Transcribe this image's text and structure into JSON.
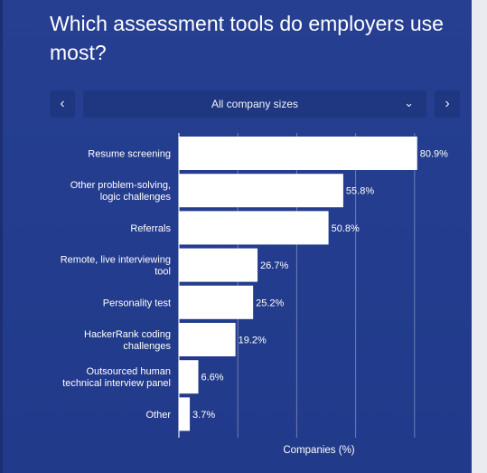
{
  "title": "Which assessment tools do employers use most?",
  "filter": {
    "selected": "All company sizes",
    "prev_icon": "chevron-left-icon",
    "next_icon": "chevron-right-icon",
    "dropdown_icon": "chevron-down-icon"
  },
  "chart_data": {
    "type": "bar",
    "orientation": "horizontal",
    "categories": [
      [
        "Resume screening"
      ],
      [
        "Other problem-solving,",
        "logic challenges"
      ],
      [
        "Referrals"
      ],
      [
        "Remote, live interviewing",
        "tool"
      ],
      [
        "Personality test"
      ],
      [
        "HackerRank coding",
        "challenges"
      ],
      [
        "Outsourced human",
        "technical interview panel"
      ],
      [
        "Other"
      ]
    ],
    "values": [
      80.9,
      55.8,
      50.8,
      26.7,
      25.2,
      19.2,
      6.6,
      3.7
    ],
    "value_labels": [
      "80.9%",
      "55.8%",
      "50.8%",
      "26.7%",
      "25.2%",
      "19.2%",
      "6.6%",
      "3.7%"
    ],
    "xlabel": "Companies (%)",
    "xlim": [
      0,
      100
    ],
    "grid": true,
    "bar_color": "#ffffff",
    "background_color": "#233c8c",
    "grid_color": "#ffffff"
  }
}
